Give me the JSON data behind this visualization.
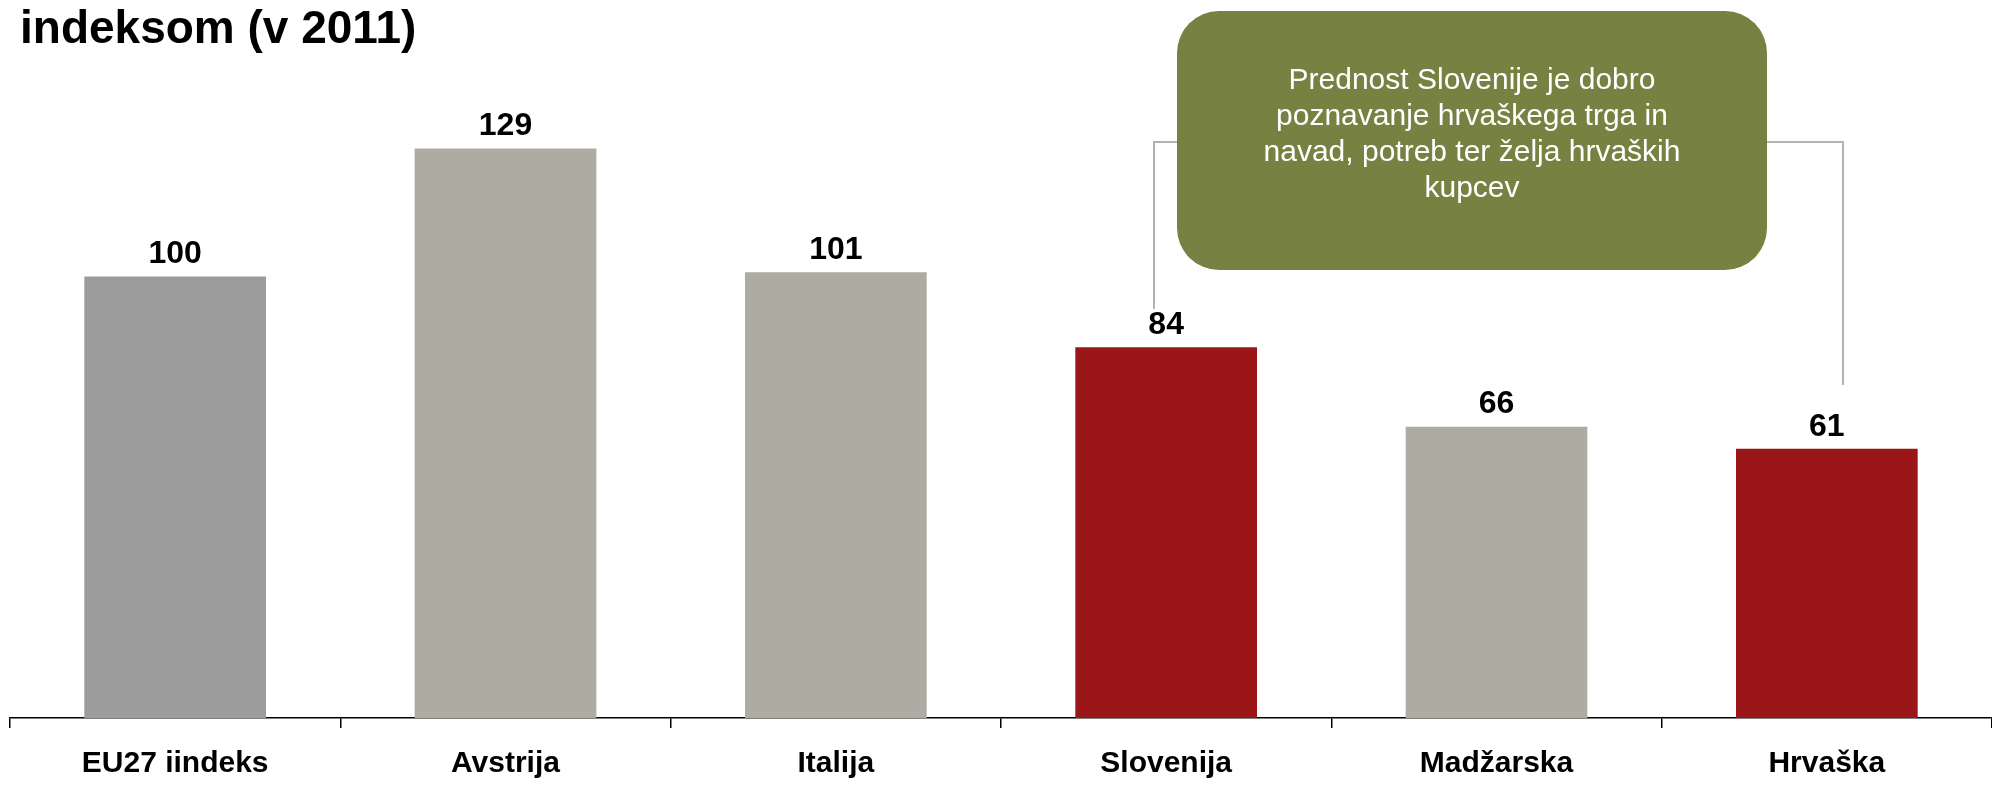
{
  "chart_data": {
    "type": "bar",
    "title": "indeksom (v 2011)",
    "categories": [
      "EU27 iindeks",
      "Avstrija",
      "Italija",
      "Slovenija",
      "Madžarska",
      "Hrvaška"
    ],
    "values": [
      100,
      129,
      101,
      84,
      66,
      61
    ],
    "colors": [
      "#9c9c9c",
      "#adaba2",
      "#adaba2",
      "#9b1619",
      "#adaba2",
      "#9b1619"
    ],
    "data_labels": true,
    "tick_labels": "x",
    "annotations": [
      "Prednost Slovenije je dobro poznavanje hrvaškega trga in navad, potreb ter želja hrvaških kupcev"
    ]
  }
}
